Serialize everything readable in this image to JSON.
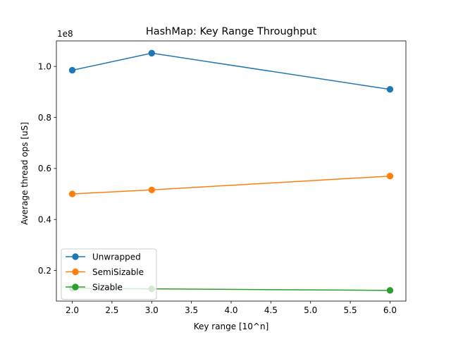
{
  "chart_data": {
    "type": "line",
    "title": "HashMap: Key Range Throughput",
    "xlabel": "Key range [10^n]",
    "ylabel": "Average thread ops [uS]",
    "y_offset_label": "1e8",
    "xlim": [
      1.8,
      6.2
    ],
    "ylim": [
      0.08,
      1.1
    ],
    "x_ticks": [
      2.0,
      2.5,
      3.0,
      3.5,
      4.0,
      4.5,
      5.0,
      5.5,
      6.0
    ],
    "x_tick_labels": [
      "2.0",
      "2.5",
      "3.0",
      "3.5",
      "4.0",
      "4.5",
      "5.0",
      "5.5",
      "6.0"
    ],
    "y_ticks": [
      0.2,
      0.4,
      0.6,
      0.8,
      1.0
    ],
    "y_tick_labels": [
      "0.2",
      "0.4",
      "0.6",
      "0.8",
      "1.0"
    ],
    "grid": false,
    "legend_position": "lower-left",
    "x": [
      2,
      3,
      6
    ],
    "series": [
      {
        "name": "Unwrapped",
        "color": "#1f77b4",
        "values": [
          0.985,
          1.052,
          0.91
        ]
      },
      {
        "name": "SemiSizable",
        "color": "#ff7f0e",
        "values": [
          0.5,
          0.516,
          0.57
        ]
      },
      {
        "name": "Sizable",
        "color": "#2ca02c",
        "values": [
          0.13,
          0.128,
          0.122
        ]
      }
    ]
  }
}
